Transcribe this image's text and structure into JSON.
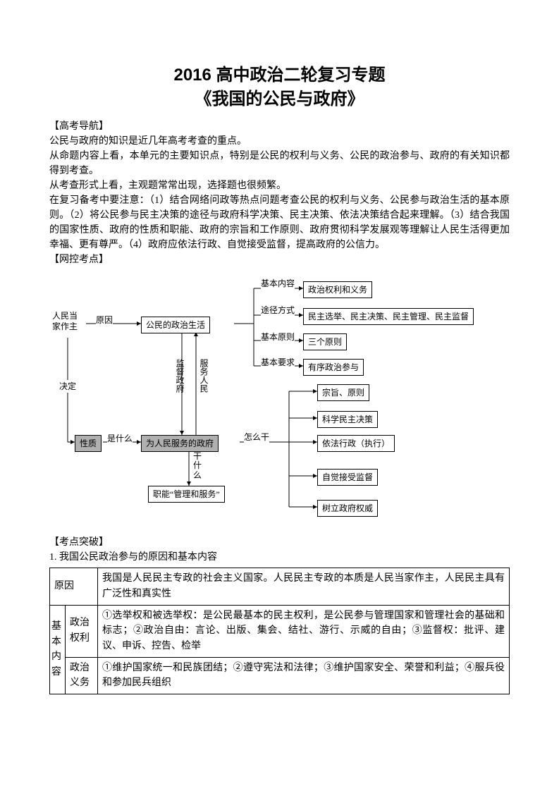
{
  "title": {
    "line1": "2016 高中政治二轮复习专题",
    "line2": "《我国的公民与政府》"
  },
  "sections": {
    "nav_heading": "【高考导航】",
    "nav_p1": "公民与政府的知识是近几年高考考查的重点。",
    "nav_p2": "从命题内容上看，本单元的主要知识点，特别是公民的权利与义务、公民的政治参与、政府的有关知识都得到考查。",
    "nav_p3": "从考查形式上看，主观题常常出现，选择题也很频繁。",
    "nav_p4": "在复习备考中要注意：（1）结合网络问政等热点问题考查公民的权利与义务、公民参与政治生活的基本原则。（2）将公民参与民主决策的途径与政府科学决策、民主决策、依法决策结合起来理解。（3）结合我国的国家性质、政府的性质和职能、政府的宗旨和工作原则、政府贯彻科学发展观等理解让人民生活得更加幸福、更有尊严。（4）政府应依法行政、自觉接受监督，提高政府的公信力。",
    "net_heading": "【网控考点】",
    "break_heading": "【考点突破】",
    "break_sub": "1. 我国公民政治参与的原因和基本内容"
  },
  "diagram": {
    "left_top": "人民当\n家作主",
    "left_mid_label": "原因",
    "center_top": "公民的政治生活",
    "left_arrow_label": "决定",
    "left_bottom": "性质",
    "left_bottom_label": "是什么",
    "center_bottom": "为人民服务的政府",
    "down_label": "干\n什\n么",
    "bottom_box": "职能“管理和服务”",
    "mid_v1": "监督政府",
    "mid_v2": "服务人民",
    "right_label": "怎么干",
    "r_top1_lbl": "基本内容",
    "r_top1": "政治权利和义务",
    "r_top2_lbl": "途径方式",
    "r_top2": "民主选举、民主决策、民主管理、民主监督",
    "r_top3_lbl": "基本原则",
    "r_top3": "三个原则",
    "r_top4_lbl": "基本要求",
    "r_top4": "有序政治参与",
    "r_b1": "宗旨、原则",
    "r_b2": "科学民主决策",
    "r_b3": "依法行政（执行）",
    "r_b4": "自觉接受监督",
    "r_b5": "树立政府权威"
  },
  "table": {
    "row1_h": "原因",
    "row1_c": "我国是人民民主专政的社会主义国家。人民民主专政的本质是人民当家作主，人民民主具有广泛性和真实性",
    "row23_h": "基本内容",
    "row2_l": "政治\n权利",
    "row2_c": "①选举权和被选举权：是公民最基本的民主权利，是公民参与管理国家和管理社会的基础和标志；②政治自由：言论、出版、集会、结社、游行、示威的自由；③监督权：批评、建议、申诉、控告、检举",
    "row3_l": "政治\n义务",
    "row3_c": "①维护国家统一和民族团结；②遵守宪法和法律；③维护国家安全、荣誉和利益；④服兵役和参加民兵组织"
  },
  "colors": {
    "text": "#000000",
    "bg": "#ffffff",
    "boxfill_dark": "#b0b0b0"
  }
}
